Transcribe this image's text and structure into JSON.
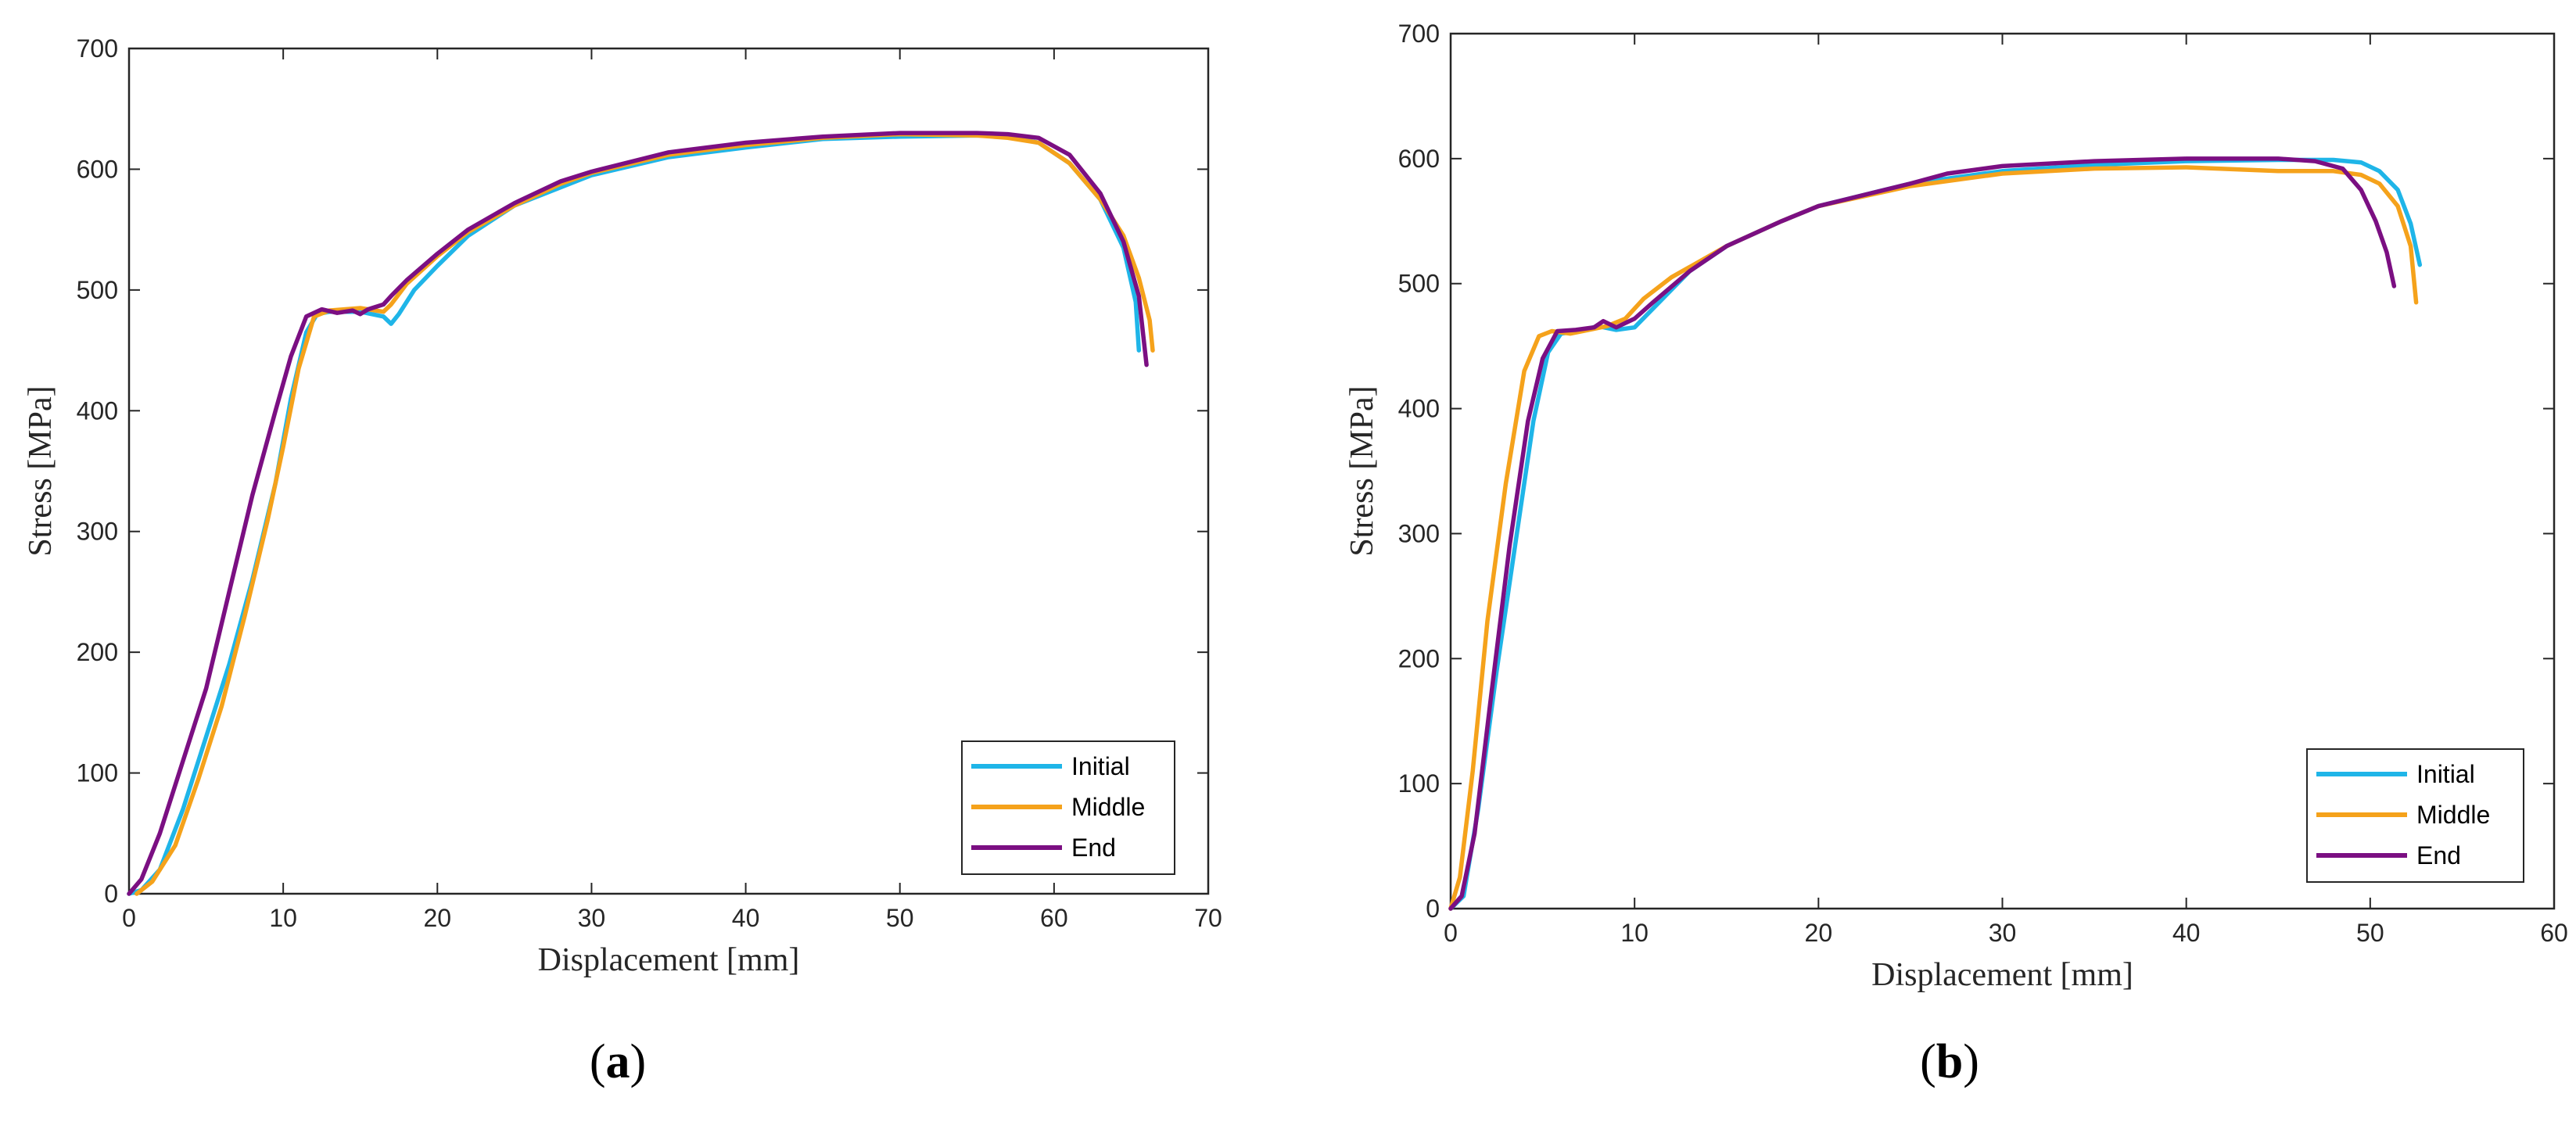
{
  "chart_data": [
    {
      "type": "line",
      "caption_open": "(",
      "caption_letter": "a",
      "caption_close": ")",
      "title": "",
      "xlabel": "Displacement [mm]",
      "ylabel": "Stress [MPa]",
      "xlim": [
        0,
        70
      ],
      "ylim": [
        0,
        700
      ],
      "xticks": [
        0,
        10,
        20,
        30,
        40,
        50,
        60,
        70
      ],
      "yticks": [
        0,
        100,
        200,
        300,
        400,
        500,
        600,
        700
      ],
      "grid": false,
      "legend_position": "bottom-right",
      "series": [
        {
          "name": "Initial",
          "color": "#1fb5e8",
          "x": [
            0,
            0.8,
            2,
            3.5,
            5,
            6.5,
            8,
            9.5,
            10.5,
            11.5,
            12.2,
            13,
            15,
            16.5,
            17,
            17.5,
            18.5,
            20,
            22,
            25,
            28,
            30,
            35,
            40,
            45,
            50,
            55,
            57,
            59,
            61,
            63,
            64.5,
            65.3,
            65.5
          ],
          "y": [
            0,
            3,
            20,
            70,
            130,
            190,
            260,
            340,
            410,
            465,
            480,
            482,
            482,
            478,
            472,
            480,
            500,
            520,
            545,
            570,
            585,
            595,
            610,
            618,
            625,
            627,
            628,
            627,
            622,
            605,
            575,
            535,
            490,
            450
          ]
        },
        {
          "name": "Middle",
          "color": "#f5a21b",
          "x": [
            0.5,
            1.5,
            3,
            4.5,
            6,
            7.5,
            9,
            10,
            11,
            12,
            13,
            15,
            16.5,
            17,
            18,
            20,
            22,
            25,
            28,
            30,
            35,
            40,
            45,
            50,
            55,
            57,
            59,
            61,
            63,
            64.5,
            65.5,
            66.2,
            66.4
          ],
          "y": [
            0,
            10,
            40,
            95,
            155,
            230,
            310,
            370,
            435,
            478,
            483,
            485,
            482,
            488,
            505,
            528,
            548,
            570,
            588,
            597,
            612,
            620,
            626,
            629,
            628,
            626,
            622,
            605,
            575,
            545,
            510,
            475,
            450
          ]
        },
        {
          "name": "End",
          "color": "#7b0f82",
          "x": [
            0,
            0.8,
            2,
            3.5,
            5,
            6.5,
            8,
            9.5,
            10.5,
            11.5,
            12.5,
            13.5,
            14.5,
            15,
            15.5,
            16,
            16.5,
            17,
            18,
            20,
            22,
            25,
            28,
            30,
            35,
            40,
            45,
            50,
            55,
            57,
            59,
            61,
            63,
            64.5,
            65.5,
            66
          ],
          "y": [
            0,
            12,
            50,
            110,
            170,
            250,
            330,
            400,
            445,
            478,
            484,
            481,
            483,
            480,
            484,
            486,
            488,
            495,
            508,
            530,
            550,
            572,
            590,
            598,
            614,
            622,
            627,
            630,
            630,
            629,
            626,
            612,
            580,
            540,
            495,
            438
          ]
        }
      ]
    },
    {
      "type": "line",
      "caption_open": "(",
      "caption_letter": "b",
      "caption_close": ")",
      "title": "",
      "xlabel": "Displacement [mm]",
      "ylabel": "Stress [MPa]",
      "xlim": [
        0,
        60
      ],
      "ylim": [
        0,
        700
      ],
      "xticks": [
        0,
        10,
        20,
        30,
        40,
        50,
        60
      ],
      "yticks": [
        0,
        100,
        200,
        300,
        400,
        500,
        600,
        700
      ],
      "grid": false,
      "legend_position": "bottom-right",
      "series": [
        {
          "name": "Initial",
          "color": "#1fb5e8",
          "x": [
            0,
            0.7,
            1.5,
            2.5,
            3.5,
            4.5,
            5.3,
            6,
            7,
            8,
            9,
            10,
            11,
            13,
            15,
            18,
            20,
            25,
            30,
            35,
            40,
            45,
            48,
            49.5,
            50.5,
            51.5,
            52.2,
            52.7
          ],
          "y": [
            0,
            10,
            80,
            190,
            290,
            390,
            445,
            460,
            462,
            466,
            463,
            465,
            480,
            510,
            530,
            550,
            562,
            580,
            590,
            595,
            598,
            599,
            599,
            597,
            590,
            575,
            548,
            515
          ]
        },
        {
          "name": "Middle",
          "color": "#f5a21b",
          "x": [
            0,
            0.5,
            1.2,
            2,
            3,
            4,
            4.8,
            5.5,
            6.5,
            7.5,
            8.5,
            9.5,
            10.5,
            12,
            15,
            18,
            20,
            25,
            30,
            35,
            40,
            45,
            48,
            49.5,
            50.5,
            51.5,
            52.2,
            52.5
          ],
          "y": [
            0,
            25,
            110,
            230,
            340,
            430,
            458,
            462,
            460,
            463,
            466,
            472,
            488,
            505,
            530,
            550,
            562,
            578,
            588,
            592,
            593,
            590,
            590,
            587,
            580,
            562,
            530,
            485
          ]
        },
        {
          "name": "End",
          "color": "#7b0f82",
          "x": [
            0,
            0.6,
            1.3,
            2.2,
            3.2,
            4.2,
            5,
            5.8,
            6.8,
            7.8,
            8.3,
            9,
            10,
            11,
            13,
            15,
            18,
            20,
            25,
            27,
            30,
            35,
            40,
            45,
            47,
            48.5,
            49.5,
            50.3,
            50.9,
            51.3
          ],
          "y": [
            0,
            10,
            60,
            170,
            290,
            390,
            440,
            462,
            463,
            465,
            470,
            465,
            472,
            485,
            510,
            530,
            550,
            562,
            580,
            588,
            594,
            598,
            600,
            600,
            598,
            592,
            575,
            550,
            525,
            498
          ]
        }
      ]
    }
  ]
}
